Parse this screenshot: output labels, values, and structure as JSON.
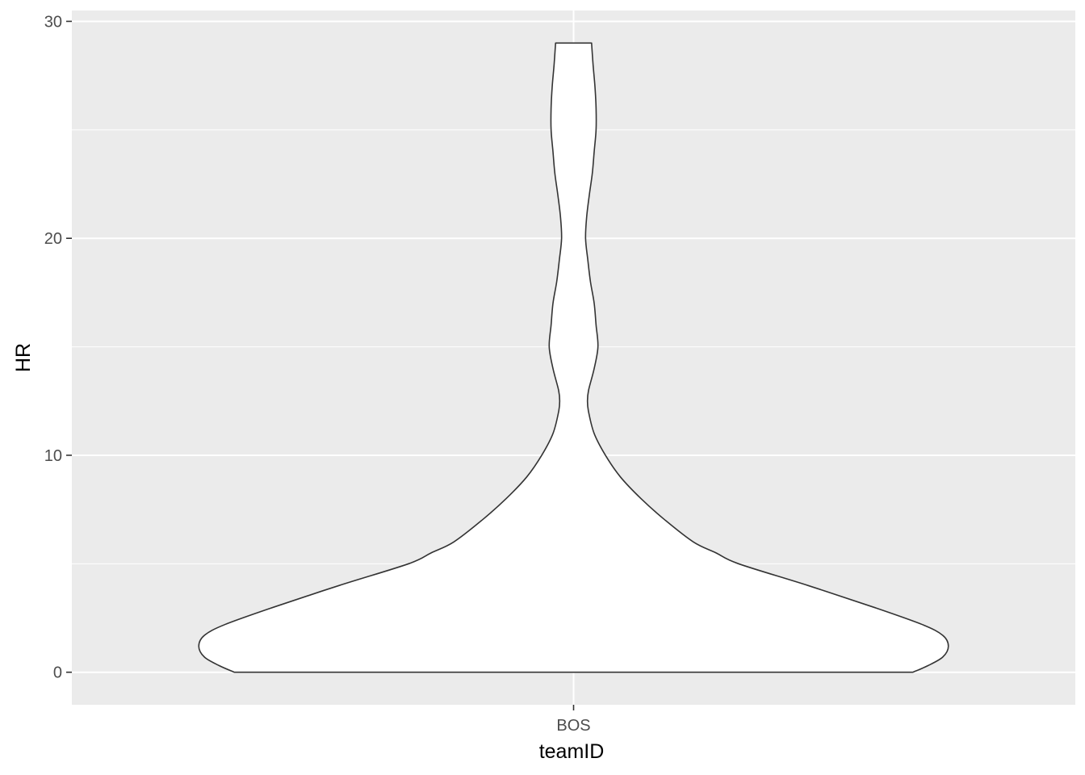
{
  "chart_data": {
    "type": "violin",
    "xlabel": "teamID",
    "ylabel": "HR",
    "categories": [
      "BOS"
    ],
    "y_ticks": [
      0,
      10,
      20,
      30
    ],
    "ylim": [
      -1.5,
      30.5
    ],
    "grid": true,
    "colors": {
      "panel": "#ebebeb",
      "grid": "#ffffff",
      "fill": "#ffffff",
      "outline": "#333333",
      "tick_text": "#4d4d4d"
    },
    "violins": [
      {
        "category": "BOS",
        "y_min": 0,
        "y_max": 29,
        "density_profile": [
          {
            "y": 0.0,
            "w": 0.905
          },
          {
            "y": 0.3,
            "w": 0.945
          },
          {
            "y": 0.7,
            "w": 0.985
          },
          {
            "y": 1.2,
            "w": 1.0
          },
          {
            "y": 1.7,
            "w": 0.985
          },
          {
            "y": 2.2,
            "w": 0.93
          },
          {
            "y": 3.0,
            "w": 0.8
          },
          {
            "y": 4.0,
            "w": 0.625
          },
          {
            "y": 5.0,
            "w": 0.44
          },
          {
            "y": 5.5,
            "w": 0.38
          },
          {
            "y": 6.0,
            "w": 0.32
          },
          {
            "y": 7.0,
            "w": 0.245
          },
          {
            "y": 8.0,
            "w": 0.18
          },
          {
            "y": 9.0,
            "w": 0.125
          },
          {
            "y": 10.0,
            "w": 0.085
          },
          {
            "y": 11.0,
            "w": 0.055
          },
          {
            "y": 12.0,
            "w": 0.04
          },
          {
            "y": 12.5,
            "w": 0.037
          },
          {
            "y": 13.0,
            "w": 0.04
          },
          {
            "y": 14.0,
            "w": 0.055
          },
          {
            "y": 15.0,
            "w": 0.065
          },
          {
            "y": 16.0,
            "w": 0.06
          },
          {
            "y": 17.0,
            "w": 0.055
          },
          {
            "y": 18.0,
            "w": 0.045
          },
          {
            "y": 19.0,
            "w": 0.038
          },
          {
            "y": 20.0,
            "w": 0.032
          },
          {
            "y": 21.0,
            "w": 0.035
          },
          {
            "y": 22.0,
            "w": 0.042
          },
          {
            "y": 23.0,
            "w": 0.05
          },
          {
            "y": 24.0,
            "w": 0.055
          },
          {
            "y": 25.0,
            "w": 0.06
          },
          {
            "y": 26.0,
            "w": 0.06
          },
          {
            "y": 27.0,
            "w": 0.057
          },
          {
            "y": 28.0,
            "w": 0.052
          },
          {
            "y": 29.0,
            "w": 0.048
          }
        ]
      }
    ]
  }
}
